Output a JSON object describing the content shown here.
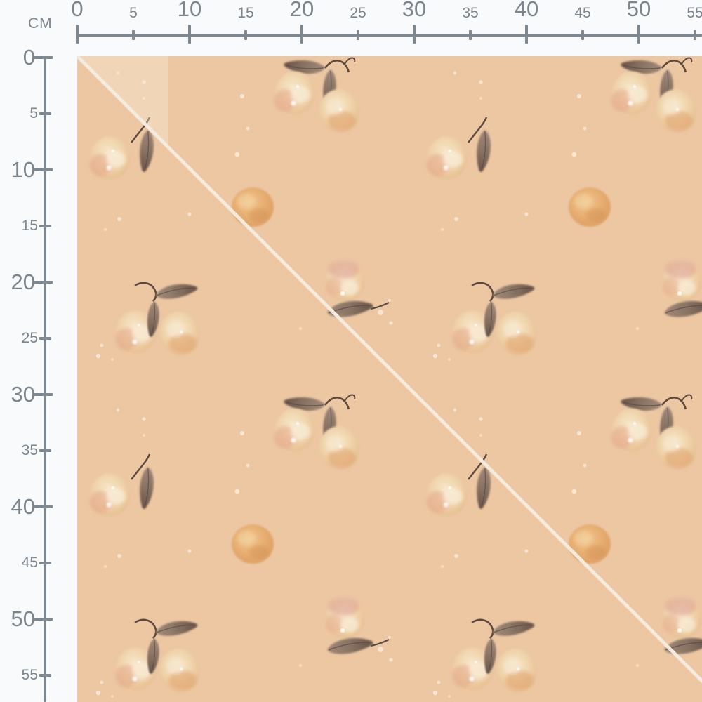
{
  "rulers": {
    "unit_label": "CM",
    "horizontal": {
      "labels": [
        "0",
        "5",
        "10",
        "15",
        "20",
        "25",
        "30",
        "35",
        "40",
        "45",
        "50",
        "55"
      ]
    },
    "vertical": {
      "labels": [
        "0",
        "5",
        "10",
        "15",
        "20",
        "25",
        "30",
        "35",
        "40",
        "45",
        "50",
        "55"
      ]
    },
    "color": "#7e8890",
    "label_color": "#7b858e"
  },
  "fabric": {
    "background_color": "#ecc7a2",
    "seam_line_color": "#f4ebdf",
    "corner_highlight_color": "#f8ead6",
    "speckle_color": "#ffffff",
    "pattern_motifs": [
      "peach-pair-hanging-with-leaves",
      "peach-single-with-leaf",
      "orange-fruit",
      "peach-with-leaf-below",
      "peach-pair-leaf-on-top"
    ],
    "palette": {
      "peach_light": "#f7e8cd",
      "peach_mid": "#f1d6af",
      "peach_edge": "#eac59a",
      "blush": "#e3a183",
      "rose": "#dd9d92",
      "orange_light": "#f0c791",
      "orange_dark": "#dd9c5f",
      "leaf_light": "#a38a7b",
      "leaf_dark": "#675349",
      "stem": "#5c4a41"
    }
  }
}
